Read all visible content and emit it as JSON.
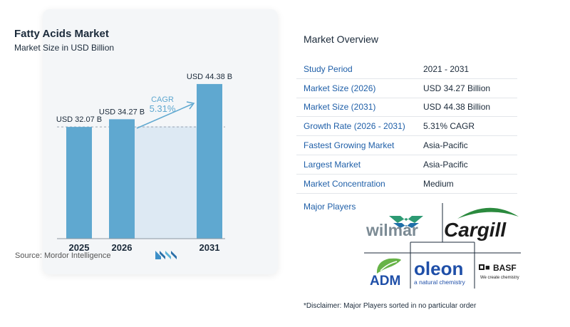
{
  "chart_data": {
    "type": "bar",
    "title": "Fatty Acids Market",
    "subtitle": "Market Size in USD Billion",
    "categories": [
      "2025",
      "2026",
      "2031"
    ],
    "values": [
      32.07,
      34.27,
      44.38
    ],
    "data_labels": [
      "USD 32.07 B",
      "USD 34.27 B",
      "USD 44.38 B"
    ],
    "cagr_label": "CAGR",
    "cagr_value": "5.31%",
    "ylim": [
      0,
      46
    ],
    "colors": {
      "bar": "#5fa8d0",
      "highlight": "#dde9f3",
      "arrow": "#5fa8d0",
      "baseline": "#9aa5b1",
      "cagr": "#5fa8d0"
    }
  },
  "source": "Source:  Mordor Intelligence",
  "overview": {
    "title": "Market Overview",
    "rows": [
      {
        "label": "Study Period",
        "value": "2021 - 2031"
      },
      {
        "label": "Market Size (2026)",
        "value": "USD 34.27 Billion"
      },
      {
        "label": "Market Size (2031)",
        "value": "USD 44.38 Billion"
      },
      {
        "label": "Growth Rate (2026 - 2031)",
        "value": "5.31% CAGR"
      },
      {
        "label": "Fastest Growing Market",
        "value": "Asia-Pacific"
      },
      {
        "label": "Largest Market",
        "value": "Asia-Pacific"
      },
      {
        "label": "Market Concentration",
        "value": "Medium"
      }
    ]
  },
  "players": {
    "title": "Major Players",
    "logos": {
      "wilmar": "wilmar",
      "cargill": "Cargill",
      "adm": "ADM",
      "oleon": "oleon",
      "oleon_tag": "a natural chemistry",
      "basf": "BASF",
      "basf_tag": "We create chemistry"
    }
  },
  "disclaimer": "*Disclaimer: Major Players sorted in no particular order"
}
